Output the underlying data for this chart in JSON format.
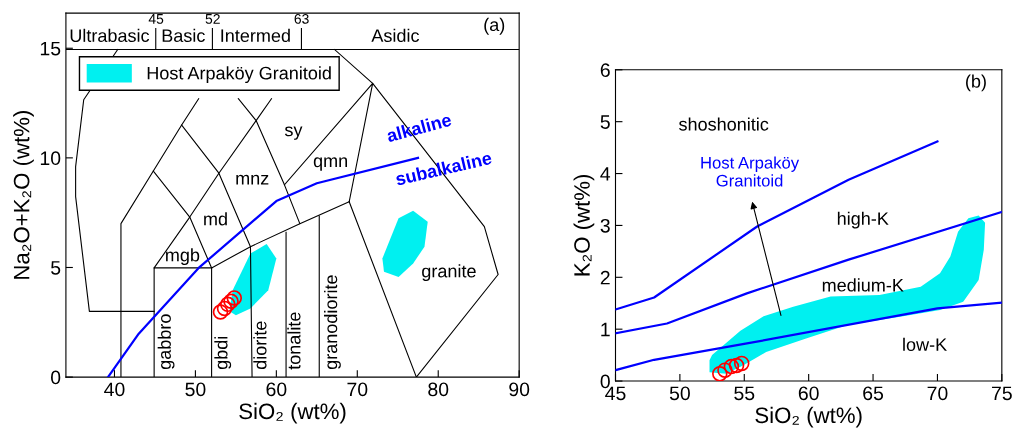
{
  "chart_data": [
    {
      "type": "line",
      "xlabel": "SiO₂ (wt%)",
      "ylabel": "Na₂O+K₂O (wt%)",
      "xlim": [
        34,
        90
      ],
      "xticks": [
        40,
        50,
        60,
        70,
        80,
        90
      ],
      "ylim": [
        0,
        16.6
      ],
      "yticks": [
        0,
        5,
        10,
        15
      ],
      "legend": "top left",
      "series": [
        {
          "color": "#000000",
          "x": [
            40.4,
            36.2,
            35.2,
            35.2,
            36.9,
            44.9
          ],
          "values": [
            14.94,
            12.65,
            9.6,
            8.23,
            3.0,
            3.0
          ]
        },
        {
          "color": "#000000",
          "x": [
            40.8,
            40.8,
            44.8,
            48.3,
            50.4
          ],
          "values": [
            0,
            7.0,
            9.4,
            11.5,
            12.7
          ]
        },
        {
          "color": "#000000",
          "x": [
            44.9,
            44.9,
            52.0,
            52.0
          ],
          "values": [
            0,
            4.98,
            4.98,
            0
          ]
        },
        {
          "color": "#000000",
          "x": [
            44.8,
            49.3,
            52.0
          ],
          "values": [
            9.4,
            7.3,
            4.98
          ]
        },
        {
          "color": "#000000",
          "x": [
            44.9,
            49.3,
            52.9,
            57.5,
            59.4
          ],
          "values": [
            4.98,
            7.3,
            9.3,
            11.7,
            12.7
          ]
        },
        {
          "color": "#000000",
          "x": [
            48.3,
            52.9,
            56.8,
            57.0
          ],
          "values": [
            11.5,
            9.3,
            5.95,
            0
          ]
        },
        {
          "color": "#000000",
          "x": [
            52.0,
            56.8,
            62.9,
            69.0
          ],
          "values": [
            4.98,
            5.95,
            7.0,
            8.0
          ]
        },
        {
          "color": "#000000",
          "x": [
            55.3,
            57.5,
            61.0,
            62.9
          ],
          "values": [
            12.7,
            11.7,
            8.77,
            7.0
          ]
        },
        {
          "color": "#000000",
          "x": [
            61.0,
            71.9,
            69.0
          ],
          "values": [
            8.77,
            13.4,
            8.0
          ]
        },
        {
          "color": "#000000",
          "x": [
            67.2,
            71.9,
            85.7,
            87.4,
            77.3,
            69.0
          ],
          "values": [
            14.94,
            13.4,
            6.86,
            4.68,
            0,
            8.0
          ]
        },
        {
          "color": "#000000",
          "x": [
            61.2,
            61.2
          ],
          "values": [
            0,
            6.6
          ]
        },
        {
          "color": "#000000",
          "x": [
            65.3,
            65.3
          ],
          "values": [
            0,
            7.35
          ]
        },
        {
          "color": "#000000",
          "x": [
            34,
            90
          ],
          "values": [
            14.94,
            14.94
          ]
        },
        {
          "color": "#000000",
          "x": [
            45.1,
            45.1
          ],
          "values": [
            14.94,
            15.9
          ]
        },
        {
          "color": "#000000",
          "x": [
            52.1,
            52.1
          ],
          "values": [
            14.94,
            15.9
          ]
        },
        {
          "color": "#000000",
          "x": [
            63.1,
            63.1
          ],
          "values": [
            14.94,
            15.9
          ]
        },
        {
          "color": "#0000ff",
          "x": [
            39.2,
            43.0,
            50.4,
            60.0,
            65.0,
            77.5
          ],
          "values": [
            0,
            1.98,
            4.98,
            8.03,
            8.84,
            10.0
          ]
        },
        {
          "type": "area",
          "name": "Host Arpaköy Granitoid",
          "color": "#00f0f0",
          "x": [
            54.6,
            56.8,
            58.8,
            60.0,
            59.0,
            56.8,
            55.0,
            54.2,
            null,
            75.1,
            76.9,
            78.7,
            78.3,
            76.9,
            75.1,
            73.3,
            73.1
          ],
          "values": [
            3.96,
            5.64,
            6.07,
            5.41,
            3.96,
            3.13,
            2.82,
            3.0,
            null,
            7.24,
            7.59,
            7.09,
            5.95,
            5.18,
            4.57,
            4.8,
            5.41
          ]
        },
        {
          "type": "scatter",
          "marker": "circle",
          "color": "#ff0000",
          "x": [
            53.1,
            53.6,
            54.0,
            54.4,
            54.8
          ],
          "values": [
            2.97,
            3.13,
            3.32,
            3.46,
            3.61
          ]
        }
      ],
      "annotations": [
        "45",
        "52",
        "63",
        "Ultrabasic",
        "Basic",
        "Intermed",
        "Asidic",
        "(a)",
        "sy",
        "qmn",
        "mnz",
        "md",
        "mgb",
        "granite",
        "gabbro",
        "gbdi",
        "diorite",
        "tonalite",
        "granodiorite",
        "alkaline",
        "subalkaline"
      ]
    },
    {
      "type": "line",
      "xlabel": "SiO₂ (wt%)",
      "ylabel": "K₂O (wt%)",
      "xlim": [
        45,
        75
      ],
      "xticks": [
        45,
        50,
        55,
        60,
        65,
        70,
        75
      ],
      "ylim": [
        0,
        6
      ],
      "yticks": [
        0,
        1,
        2,
        3,
        4,
        5,
        6
      ],
      "series": [
        {
          "type": "area",
          "color": "#00f0f0",
          "x": [
            52.5,
            54.7,
            56.5,
            58.8,
            61.7,
            65.5,
            68.7,
            70.2,
            71.0,
            71.6,
            72.4,
            73.2,
            73.7,
            73.6,
            73.2,
            72.0,
            70.2,
            67.1,
            63.0,
            59.8,
            56.7,
            54.9,
            53.6,
            52.3,
            52.3
          ],
          "values": [
            0.5,
            0.97,
            1.25,
            1.43,
            1.63,
            1.66,
            1.82,
            2.08,
            2.4,
            2.88,
            3.14,
            3.19,
            3.05,
            2.53,
            1.95,
            1.53,
            1.37,
            1.24,
            1.08,
            0.82,
            0.56,
            0.3,
            0.14,
            0.17,
            0.4
          ]
        },
        {
          "color": "#0000ff",
          "x": [
            45,
            48,
            56,
            63.1,
            70
          ],
          "values": [
            1.38,
            1.61,
            2.98,
            3.88,
            4.62
          ]
        },
        {
          "color": "#0000ff",
          "x": [
            45,
            49,
            55.2,
            63.1,
            75
          ],
          "values": [
            0.92,
            1.11,
            1.69,
            2.34,
            3.26
          ]
        },
        {
          "color": "#0000ff",
          "x": [
            45,
            48,
            55.1,
            70,
            75
          ],
          "values": [
            0.21,
            0.41,
            0.72,
            1.4,
            1.51
          ]
        },
        {
          "type": "scatter",
          "marker": "circle",
          "color": "#ff0000",
          "x": [
            53.1,
            53.5,
            54.0,
            54.4,
            54.8
          ],
          "values": [
            0.14,
            0.21,
            0.28,
            0.3,
            0.34
          ]
        }
      ],
      "annotations": [
        "(b)",
        "shoshonitic",
        "high-K",
        "medium-K",
        "low-K",
        "Host Arpaköy\nGranitoid"
      ]
    }
  ]
}
